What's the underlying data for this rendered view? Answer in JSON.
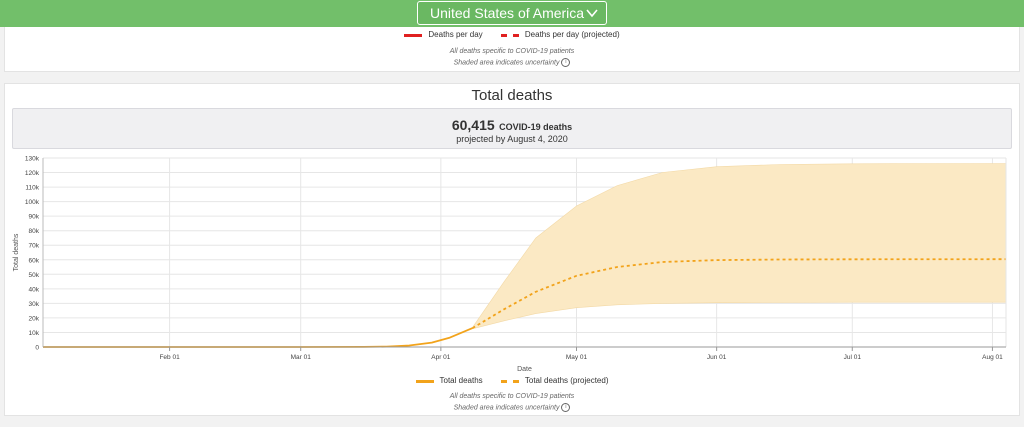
{
  "header": {
    "country": "United States of America"
  },
  "top_card": {
    "legend": [
      "Deaths per day",
      "Deaths per day (projected)"
    ],
    "notes": [
      "All deaths specific to COVID-19 patients",
      "Shaded area indicates uncertainty"
    ]
  },
  "chart_card": {
    "title": "Total deaths",
    "summary_number": "60,415",
    "summary_label": "COVID-19 deaths",
    "summary_sub": "projected by August 4, 2020",
    "legend": [
      "Total deaths",
      "Total deaths (projected)"
    ],
    "notes": [
      "All deaths specific to COVID-19 patients",
      "Shaded area indicates uncertainty"
    ]
  },
  "colors": {
    "accent_green": "#72bf6a",
    "series": "#f2a31b",
    "band": "#fbe9c4",
    "per_day": "#e02020"
  },
  "chart_data": {
    "type": "line",
    "xlabel": "Date",
    "ylabel": "Total deaths",
    "x_range": [
      "2020-01-04",
      "2020-08-04"
    ],
    "ylim": [
      0,
      130000
    ],
    "y_ticks": [
      0,
      10000,
      20000,
      30000,
      40000,
      50000,
      60000,
      70000,
      80000,
      90000,
      100000,
      110000,
      120000,
      130000
    ],
    "y_tick_labels": [
      "0",
      "10k",
      "20k",
      "30k",
      "40k",
      "50k",
      "60k",
      "70k",
      "80k",
      "90k",
      "100k",
      "110k",
      "120k",
      "130k"
    ],
    "x_ticks": [
      "2020-02-01",
      "2020-03-01",
      "2020-04-01",
      "2020-05-01",
      "2020-06-01",
      "2020-07-01",
      "2020-08-01"
    ],
    "x_tick_labels": [
      "Feb 01",
      "Mar 01",
      "Apr 01",
      "May 01",
      "Jun 01",
      "Jul 01",
      "Aug 01"
    ],
    "grid": true,
    "legend_position": "bottom",
    "series": [
      {
        "name": "Total deaths",
        "style": "solid",
        "x": [
          "2020-01-04",
          "2020-02-01",
          "2020-03-01",
          "2020-03-15",
          "2020-03-20",
          "2020-03-25",
          "2020-03-30",
          "2020-04-03",
          "2020-04-08"
        ],
        "y": [
          0,
          0,
          0,
          80,
          300,
          1000,
          3000,
          6500,
          13000
        ]
      },
      {
        "name": "Total deaths (projected)",
        "style": "dashed",
        "x": [
          "2020-04-08",
          "2020-04-15",
          "2020-04-22",
          "2020-05-01",
          "2020-05-10",
          "2020-05-20",
          "2020-06-01",
          "2020-06-15",
          "2020-07-01",
          "2020-08-04"
        ],
        "y": [
          13000,
          26000,
          38000,
          49000,
          55000,
          58500,
          59800,
          60200,
          60350,
          60415
        ]
      }
    ],
    "uncertainty_band": {
      "x": [
        "2020-04-08",
        "2020-04-15",
        "2020-04-22",
        "2020-05-01",
        "2020-05-10",
        "2020-05-20",
        "2020-06-01",
        "2020-06-15",
        "2020-07-01",
        "2020-08-04"
      ],
      "lower": [
        12500,
        18000,
        23000,
        27000,
        29000,
        30000,
        30500,
        30700,
        30800,
        30800
      ],
      "upper": [
        13500,
        45000,
        75000,
        97000,
        111000,
        120000,
        124000,
        125500,
        126000,
        126200
      ]
    }
  }
}
